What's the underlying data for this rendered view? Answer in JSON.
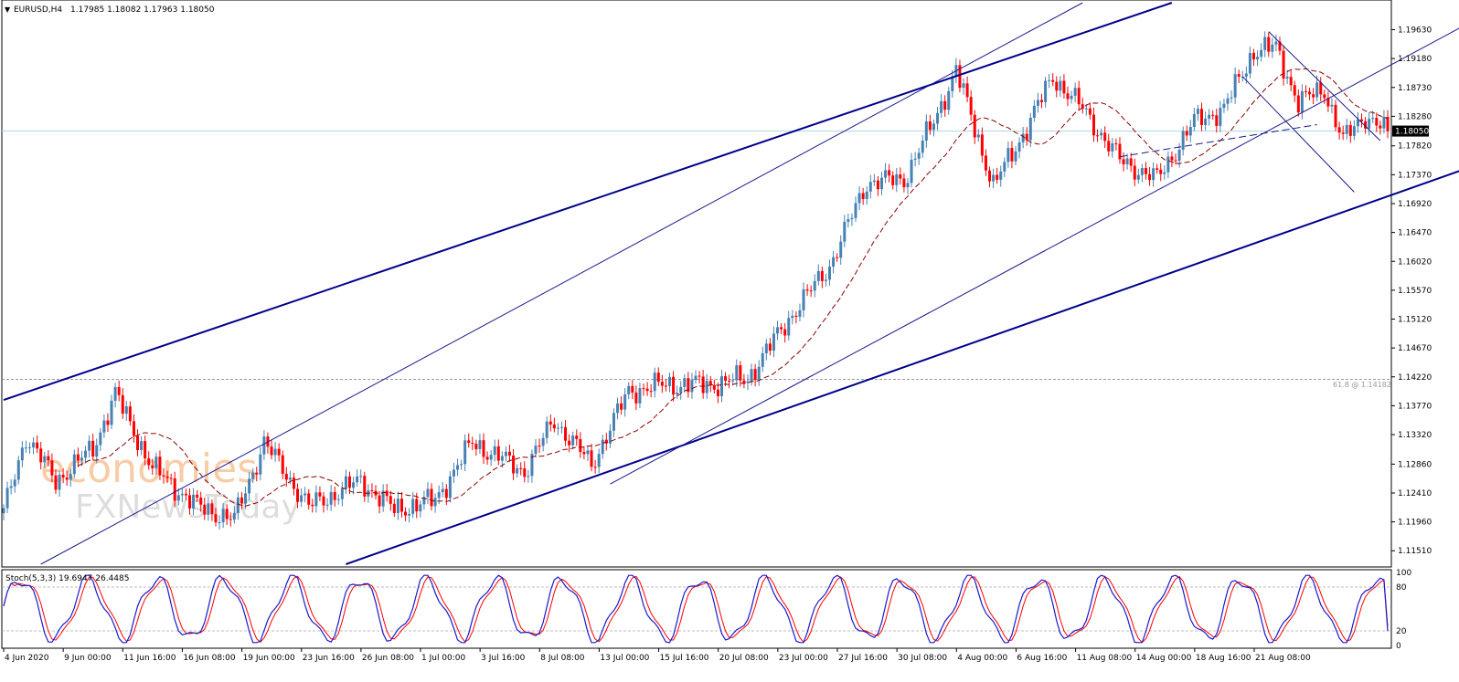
{
  "chart_data": {
    "type": "candlestick",
    "symbol_header": "EURUSD,H4",
    "ohlc_header": "1.17985 1.18082 1.17963 1.18050",
    "current_price": "1.18050",
    "price_axis_ticks": [
      "1.19630",
      "1.19180",
      "1.18730",
      "1.18280",
      "1.17820",
      "1.17370",
      "1.16920",
      "1.16470",
      "1.16020",
      "1.15570",
      "1.15120",
      "1.14670",
      "1.14220",
      "1.13770",
      "1.13320",
      "1.12860",
      "1.12410",
      "1.11960",
      "1.11510"
    ],
    "price_range": [
      1.113,
      1.2005
    ],
    "fib_label": "61.8 @ 1.14182",
    "fib_level": 1.14182,
    "time_axis_labels": [
      "4 Jun 2020",
      "9 Jun 00:00",
      "11 Jun 16:00",
      "16 Jun 08:00",
      "19 Jun 00:00",
      "23 Jun 16:00",
      "26 Jun 08:00",
      "1 Jul 00:00",
      "3 Jul 16:00",
      "8 Jul 08:00",
      "13 Jul 00:00",
      "15 Jul 16:00",
      "20 Jul 08:00",
      "23 Jul 00:00",
      "27 Jul 16:00",
      "30 Jul 08:00",
      "4 Aug 00:00",
      "6 Aug 16:00",
      "11 Aug 08:00",
      "14 Aug 00:00",
      "18 Aug 16:00",
      "21 Aug 08:00"
    ],
    "anchors": [
      {
        "bar": 0,
        "price": 1.121
      },
      {
        "bar": 6,
        "price": 1.133
      },
      {
        "bar": 14,
        "price": 1.126
      },
      {
        "bar": 24,
        "price": 1.131
      },
      {
        "bar": 30,
        "price": 1.1395
      },
      {
        "bar": 40,
        "price": 1.128
      },
      {
        "bar": 52,
        "price": 1.122
      },
      {
        "bar": 62,
        "price": 1.12
      },
      {
        "bar": 70,
        "price": 1.132
      },
      {
        "bar": 82,
        "price": 1.122
      },
      {
        "bar": 96,
        "price": 1.126
      },
      {
        "bar": 105,
        "price": 1.1215
      },
      {
        "bar": 116,
        "price": 1.123
      },
      {
        "bar": 126,
        "price": 1.132
      },
      {
        "bar": 140,
        "price": 1.1275
      },
      {
        "bar": 148,
        "price": 1.1355
      },
      {
        "bar": 158,
        "price": 1.1285
      },
      {
        "bar": 168,
        "price": 1.14
      },
      {
        "bar": 178,
        "price": 1.141
      },
      {
        "bar": 190,
        "price": 1.141
      },
      {
        "bar": 200,
        "price": 1.142
      },
      {
        "bar": 212,
        "price": 1.152
      },
      {
        "bar": 222,
        "price": 1.1595
      },
      {
        "bar": 232,
        "price": 1.1725
      },
      {
        "bar": 242,
        "price": 1.173
      },
      {
        "bar": 250,
        "price": 1.182
      },
      {
        "bar": 256,
        "price": 1.19
      },
      {
        "bar": 266,
        "price": 1.172
      },
      {
        "bar": 274,
        "price": 1.18
      },
      {
        "bar": 282,
        "price": 1.189
      },
      {
        "bar": 290,
        "price": 1.184
      },
      {
        "bar": 300,
        "price": 1.176
      },
      {
        "bar": 310,
        "price": 1.173
      },
      {
        "bar": 320,
        "price": 1.182
      },
      {
        "bar": 328,
        "price": 1.184
      },
      {
        "bar": 336,
        "price": 1.193
      },
      {
        "bar": 342,
        "price": 1.1935
      },
      {
        "bar": 348,
        "price": 1.185
      },
      {
        "bar": 355,
        "price": 1.187
      },
      {
        "bar": 360,
        "price": 1.179
      },
      {
        "bar": 366,
        "price": 1.183
      },
      {
        "bar": 372,
        "price": 1.1805
      }
    ],
    "bar_count": 373,
    "moving_average": {
      "style": "dashed",
      "color": "#8b0000",
      "period_bars": 20
    },
    "trendlines": [
      {
        "from": [
          0,
          1.1386
        ],
        "to": [
          314,
          1.2005
        ],
        "style": "thick",
        "color": "#00008b"
      },
      {
        "from": [
          92,
          1.113
        ],
        "to": [
          407,
          1.1775
        ],
        "style": "thick",
        "color": "#00008b"
      },
      {
        "from": [
          10,
          1.113
        ],
        "to": [
          290,
          1.2005
        ],
        "style": "thin",
        "color": "#1a1a8c"
      },
      {
        "from": [
          163,
          1.1255
        ],
        "to": [
          404,
          1.2005
        ],
        "style": "thin",
        "color": "#1a1a8c"
      },
      {
        "from": [
          340,
          1.196
        ],
        "to": [
          370,
          1.179
        ],
        "style": "thin",
        "color": "#1a1a8c"
      },
      {
        "from": [
          333,
          1.189
        ],
        "to": [
          363,
          1.171
        ],
        "style": "thin",
        "color": "#1a1a8c"
      },
      {
        "from": [
          300,
          1.1765
        ],
        "to": [
          353,
          1.1815
        ],
        "style": "dashed",
        "color": "#1a1a8c"
      }
    ],
    "stochastic": {
      "label": "Stoch(5,3,3) 19.6947 26.4485",
      "ticks": [
        "100",
        "80",
        "20",
        "0"
      ],
      "levels": [
        80,
        20
      ],
      "main_color": "#1a1acd",
      "signal_color": "#ff0000"
    },
    "colors": {
      "bull": "#4682b4",
      "bear": "#ff0000",
      "grid_line": "#c0c0c0",
      "current_price_line": "#add8e6"
    }
  },
  "watermark": {
    "line1": "economies",
    "line2": "FXNewsToday",
    "colors": [
      "#f4a460",
      "#c8c8c8"
    ]
  }
}
